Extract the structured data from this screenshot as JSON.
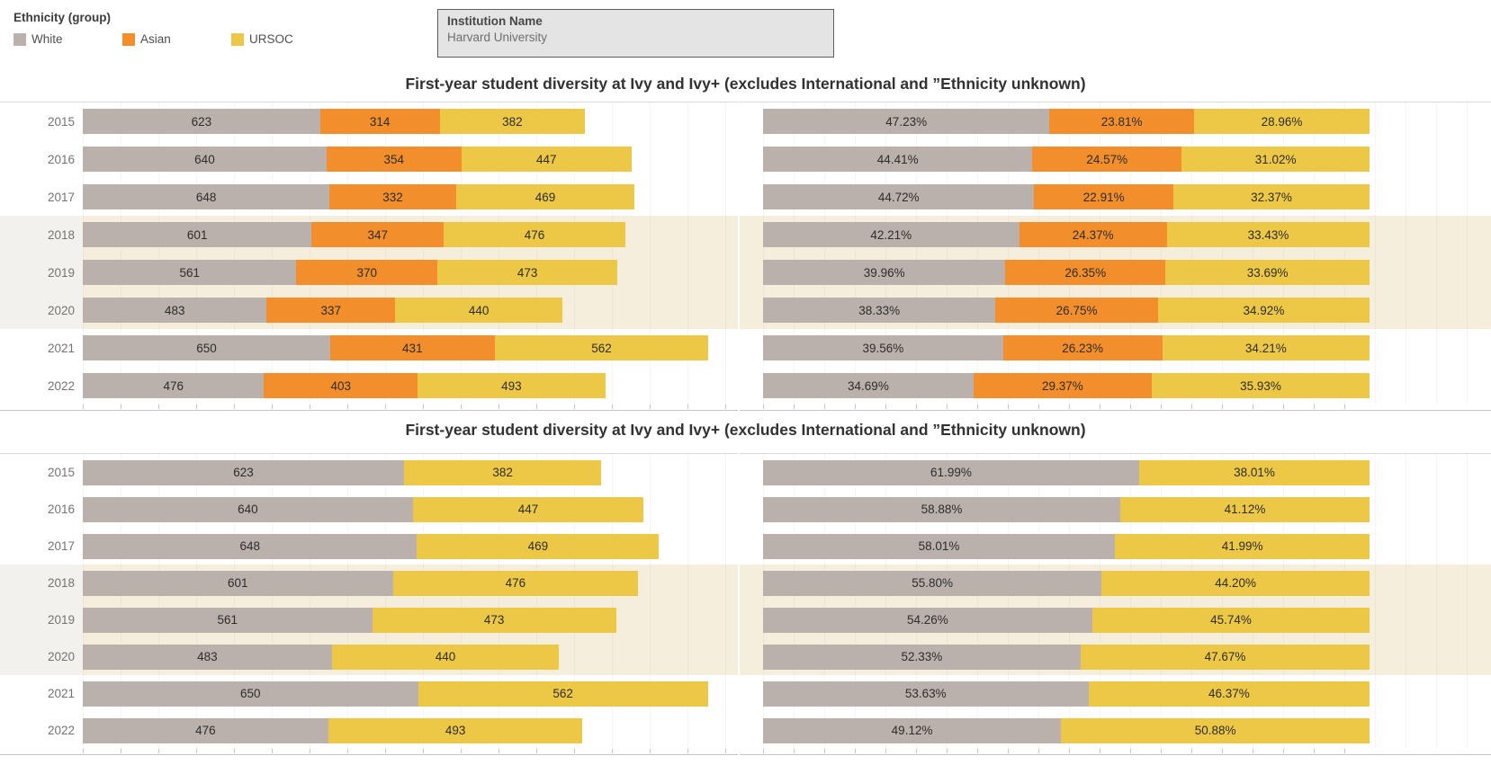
{
  "legend": {
    "title": "Ethnicity (group)",
    "items": [
      {
        "name": "White",
        "label": "White",
        "color": "#bab0ac"
      },
      {
        "name": "Asian",
        "label": "Asian",
        "color": "#f28e2b"
      },
      {
        "name": "URSOC",
        "label": "URSOC",
        "color": "#ecc846"
      }
    ]
  },
  "filter": {
    "label": "Institution Name",
    "value": "Harvard University"
  },
  "sections": [
    {
      "title": "First-year student diversity at Ivy and Ivy+ (excludes International and ”Ethnicity unknown)"
    },
    {
      "title": "First-year student diversity at Ivy and Ivy+ (excludes International and ”Ethnicity unknown)"
    }
  ],
  "highlighted_years": [
    "2018",
    "2019",
    "2020"
  ],
  "chart_data": [
    {
      "type": "bar",
      "orientation": "horizontal",
      "stacked": true,
      "panel": "top-left",
      "value_format": "count",
      "grid": true,
      "categories": [
        "2015",
        "2016",
        "2017",
        "2018",
        "2019",
        "2020",
        "2021",
        "2022"
      ],
      "series": [
        {
          "name": "White",
          "values": [
            623,
            640,
            648,
            601,
            561,
            483,
            650,
            476
          ]
        },
        {
          "name": "Asian",
          "values": [
            314,
            354,
            332,
            347,
            370,
            337,
            431,
            403
          ]
        },
        {
          "name": "URSOC",
          "values": [
            382,
            447,
            469,
            476,
            473,
            440,
            562,
            493
          ]
        }
      ],
      "xlim": [
        0,
        1720
      ]
    },
    {
      "type": "bar",
      "orientation": "horizontal",
      "stacked": true,
      "panel": "top-right",
      "value_format": "percent",
      "grid": true,
      "categories": [
        "2015",
        "2016",
        "2017",
        "2018",
        "2019",
        "2020",
        "2021",
        "2022"
      ],
      "series": [
        {
          "name": "White",
          "values": [
            47.23,
            44.41,
            44.72,
            42.21,
            39.96,
            38.33,
            39.56,
            34.69
          ]
        },
        {
          "name": "Asian",
          "values": [
            23.81,
            24.57,
            22.91,
            24.37,
            26.35,
            26.75,
            26.23,
            29.37
          ]
        },
        {
          "name": "URSOC",
          "values": [
            28.96,
            31.02,
            32.37,
            33.43,
            33.69,
            34.92,
            34.21,
            35.93
          ]
        }
      ],
      "xlim": [
        0,
        120
      ]
    },
    {
      "type": "bar",
      "orientation": "horizontal",
      "stacked": true,
      "panel": "bottom-left",
      "value_format": "count",
      "grid": true,
      "categories": [
        "2015",
        "2016",
        "2017",
        "2018",
        "2019",
        "2020",
        "2021",
        "2022"
      ],
      "series": [
        {
          "name": "White",
          "values": [
            623,
            640,
            648,
            601,
            561,
            483,
            650,
            476
          ]
        },
        {
          "name": "URSOC",
          "values": [
            382,
            447,
            469,
            476,
            473,
            440,
            562,
            493
          ]
        }
      ],
      "xlim": [
        0,
        1270
      ]
    },
    {
      "type": "bar",
      "orientation": "horizontal",
      "stacked": true,
      "panel": "bottom-right",
      "value_format": "percent",
      "grid": true,
      "categories": [
        "2015",
        "2016",
        "2017",
        "2018",
        "2019",
        "2020",
        "2021",
        "2022"
      ],
      "series": [
        {
          "name": "White",
          "values": [
            61.99,
            58.88,
            58.01,
            55.8,
            54.26,
            52.33,
            53.63,
            49.12
          ]
        },
        {
          "name": "URSOC",
          "values": [
            38.01,
            41.12,
            41.99,
            44.2,
            45.74,
            47.67,
            46.37,
            50.88
          ]
        }
      ],
      "xlim": [
        0,
        120
      ]
    }
  ]
}
